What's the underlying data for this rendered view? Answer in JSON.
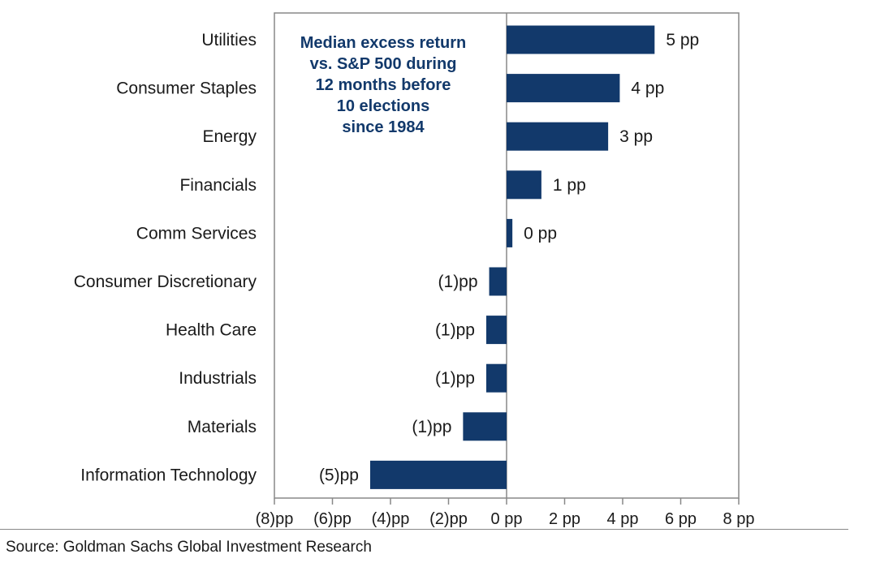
{
  "chart_data": {
    "type": "bar",
    "orientation": "horizontal",
    "categories": [
      "Utilities",
      "Consumer Staples",
      "Energy",
      "Financials",
      "Comm Services",
      "Consumer Discretionary",
      "Health Care",
      "Industrials",
      "Materials",
      "Information Technology"
    ],
    "values": [
      5.1,
      3.9,
      3.5,
      1.2,
      0.2,
      -0.6,
      -0.7,
      -0.7,
      -1.5,
      -4.7
    ],
    "data_labels": [
      "5 pp",
      "4 pp",
      "3 pp",
      "1 pp",
      "0 pp",
      "(1)pp",
      "(1)pp",
      "(1)pp",
      "(1)pp",
      "(5)pp"
    ],
    "annotation": [
      "Median excess return",
      "vs. S&P 500 during",
      "12 months before",
      "10 elections",
      "since 1984"
    ],
    "xlim": [
      -8,
      8
    ],
    "xticks": [
      -8,
      -6,
      -4,
      -2,
      0,
      2,
      4,
      6,
      8
    ],
    "xtick_labels": [
      "(8)pp",
      "(6)pp",
      "(4)pp",
      "(2)pp",
      "0 pp",
      "2 pp",
      "4 pp",
      "6 pp",
      "8 pp"
    ],
    "bar_color": "#12396b",
    "grid": false,
    "legend": "none"
  },
  "source": "Source: Goldman Sachs Global Investment Research"
}
